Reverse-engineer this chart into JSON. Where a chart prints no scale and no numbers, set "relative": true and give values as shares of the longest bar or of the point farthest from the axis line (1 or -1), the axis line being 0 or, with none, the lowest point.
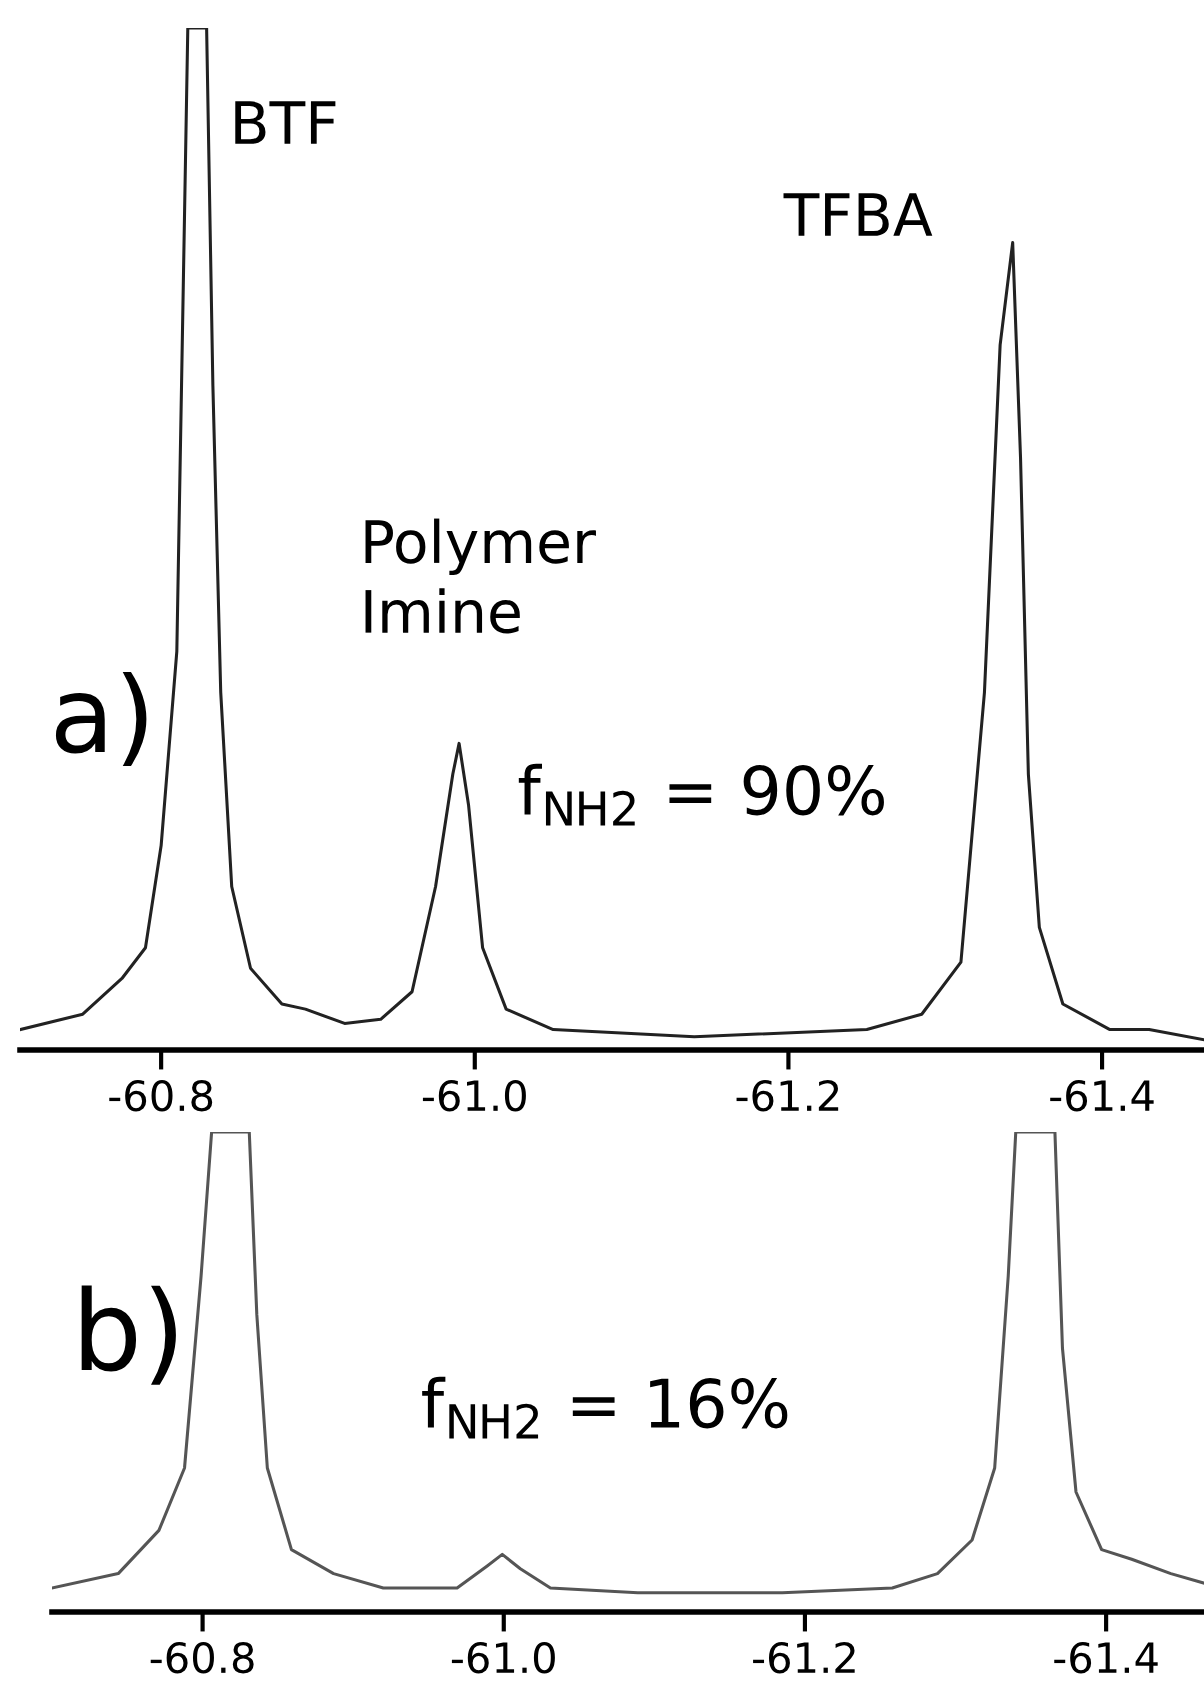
{
  "chart_data": [
    {
      "type": "line",
      "relative": true,
      "xlim": [
        -60.71,
        -61.465
      ],
      "xticks": [
        {
          "value": -60.8,
          "label": "-60.8"
        },
        {
          "value": -61.0,
          "label": "-61.0"
        },
        {
          "value": -61.2,
          "label": "-61.2"
        },
        {
          "value": -61.4,
          "label": "-61.4"
        }
      ],
      "marker": "none",
      "line_style": "solid",
      "annotations": [
        "BTF",
        "TFBA",
        "Polymer\nImine",
        "a)",
        "f$_{NH2}$ = 90%"
      ],
      "series": [
        {
          "color": "#222222",
          "x": [
            -60.71,
            -60.75,
            -60.775,
            -60.79,
            -60.8,
            -60.81,
            -60.813,
            -60.817,
            -60.829,
            -60.833,
            -60.838,
            -60.845,
            -60.857,
            -60.877,
            -60.892,
            -60.917,
            -60.94,
            -60.96,
            -60.975,
            -60.986,
            -60.99,
            -60.996,
            -61.005,
            -61.02,
            -61.05,
            -61.14,
            -61.25,
            -61.285,
            -61.31,
            -61.325,
            -61.335,
            -61.343,
            -61.348,
            -61.353,
            -61.36,
            -61.375,
            -61.405,
            -61.43,
            -61.465
          ],
          "values": [
            0.02,
            0.035,
            0.07,
            0.1,
            0.2,
            0.39,
            0.65,
            1.0,
            1.0,
            0.65,
            0.35,
            0.16,
            0.08,
            0.045,
            0.04,
            0.026,
            0.03,
            0.057,
            0.16,
            0.27,
            0.3,
            0.24,
            0.1,
            0.04,
            0.02,
            0.013,
            0.02,
            0.035,
            0.086,
            0.35,
            0.69,
            0.79,
            0.58,
            0.27,
            0.12,
            0.045,
            0.02,
            0.02,
            0.01
          ]
        }
      ]
    },
    {
      "type": "line",
      "relative": true,
      "xlim": [
        -60.7,
        -61.465
      ],
      "xticks": [
        {
          "value": -60.8,
          "label": "-60.8"
        },
        {
          "value": -61.0,
          "label": "-61.0"
        },
        {
          "value": -61.2,
          "label": "-61.2"
        },
        {
          "value": -61.4,
          "label": "-61.4"
        }
      ],
      "marker": "none",
      "line_style": "solid",
      "annotations": [
        "b)",
        "f$_{NH2}$ = 16%"
      ],
      "series": [
        {
          "color": "#555555",
          "x": [
            -60.7,
            -60.744,
            -60.771,
            -60.788,
            -60.799,
            -60.806,
            -60.831,
            -60.836,
            -60.843,
            -60.859,
            -60.887,
            -60.92,
            -60.969,
            -60.989,
            -60.999,
            -61.011,
            -61.031,
            -61.089,
            -61.185,
            -61.258,
            -61.288,
            -61.311,
            -61.326,
            -61.335,
            -61.34,
            -61.366,
            -61.371,
            -61.38,
            -61.397,
            -61.417,
            -61.443,
            -61.465
          ],
          "values": [
            0.05,
            0.08,
            0.17,
            0.3,
            0.7,
            1.0,
            1.0,
            0.62,
            0.3,
            0.13,
            0.08,
            0.05,
            0.05,
            0.096,
            0.12,
            0.09,
            0.05,
            0.04,
            0.04,
            0.05,
            0.08,
            0.15,
            0.3,
            0.7,
            1.0,
            1.0,
            0.55,
            0.25,
            0.13,
            0.11,
            0.08,
            0.06
          ]
        }
      ]
    }
  ]
}
